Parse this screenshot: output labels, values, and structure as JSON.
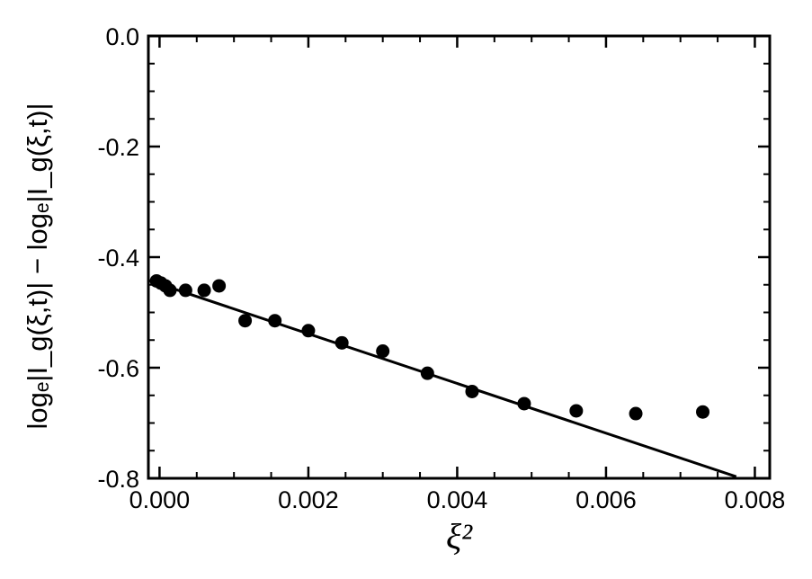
{
  "chart_data": {
    "type": "scatter",
    "title": "",
    "xlabel": "ξ²",
    "ylabel": "logₑ|I_g(ξ,t)| − logₑ|I_g(ξ,t)|",
    "xlim": [
      -0.00015,
      0.0082
    ],
    "ylim": [
      -0.8,
      0.0
    ],
    "x_ticks": [
      0.0,
      0.002,
      0.004,
      0.006,
      0.008
    ],
    "x_tick_labels": [
      "0.000",
      "0.002",
      "0.004",
      "0.006",
      "0.008"
    ],
    "y_ticks": [
      0.0,
      -0.2,
      -0.4,
      -0.6,
      -0.8
    ],
    "y_tick_labels": [
      "0.0",
      "-0.2",
      "-0.4",
      "-0.6",
      "-0.8"
    ],
    "grid": false,
    "series": [
      {
        "type": "scatter",
        "x": [
          -4e-05,
          2e-05,
          8e-05,
          0.00014,
          0.00035,
          0.0006,
          0.0008,
          0.00115,
          0.00155,
          0.002,
          0.00245,
          0.003,
          0.0036,
          0.0042,
          0.0049,
          0.0056,
          0.0064,
          0.0073
        ],
        "y": [
          -0.443,
          -0.447,
          -0.452,
          -0.46,
          -0.46,
          -0.46,
          -0.452,
          -0.515,
          -0.515,
          -0.533,
          -0.555,
          -0.57,
          -0.61,
          -0.643,
          -0.665,
          -0.678,
          -0.683,
          -0.68
        ]
      },
      {
        "type": "line",
        "x": [
          -0.00015,
          0.00775
        ],
        "y": [
          -0.442,
          -0.797
        ]
      }
    ]
  }
}
